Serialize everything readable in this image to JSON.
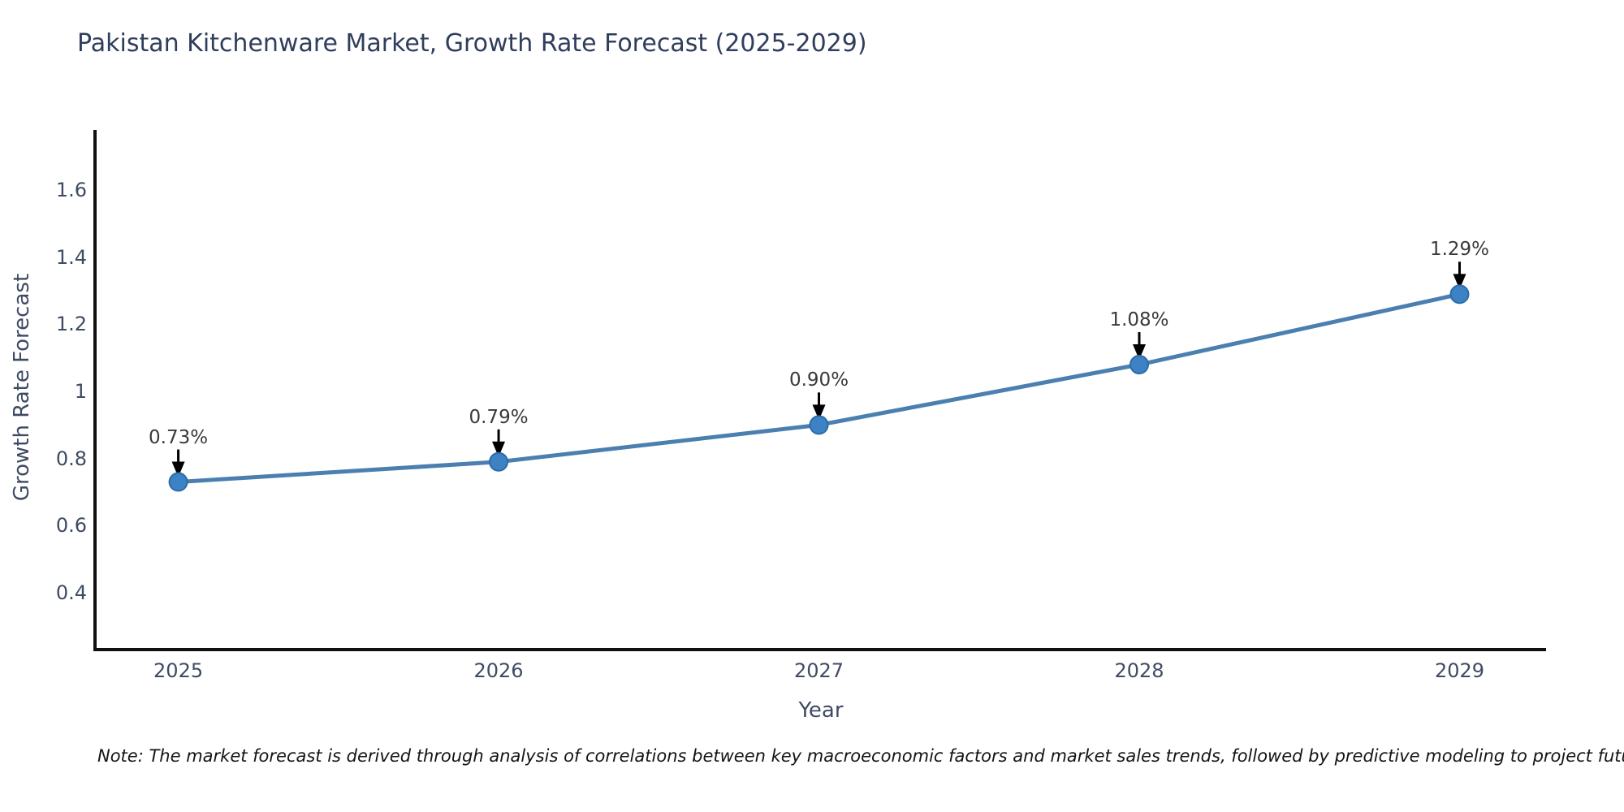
{
  "title": "Pakistan Kitchenware Market, Growth Rate Forecast (2025-2029)",
  "note": "Note: The market forecast is derived through analysis of correlations between key macroeconomic factors and market sales trends, followed by predictive modeling to project future sales",
  "chart_data": {
    "type": "line",
    "title": "Pakistan Kitchenware Market, Growth Rate Forecast (2025-2029)",
    "xlabel": "Year",
    "ylabel": "Growth Rate Forecast",
    "x": [
      2025,
      2026,
      2027,
      2028,
      2029
    ],
    "series": [
      {
        "name": "Growth Rate Forecast",
        "values": [
          0.73,
          0.79,
          0.9,
          1.08,
          1.29
        ],
        "point_labels": [
          "0.73%",
          "0.79%",
          "0.90%",
          "1.08%",
          "1.29%"
        ]
      }
    ],
    "xtick_labels": [
      "2025",
      "2026",
      "2027",
      "2028",
      "2029"
    ],
    "ytick_values": [
      0.4,
      0.6,
      0.8,
      1,
      1.2,
      1.4,
      1.6
    ],
    "ytick_labels": [
      "0.4",
      "0.6",
      "0.8",
      "1",
      "1.2",
      "1.4",
      "1.6"
    ],
    "xlim": [
      2024.74,
      2029.27
    ],
    "ylim": [
      0.23,
      1.78
    ],
    "grid": false,
    "legend_position": "none",
    "annotation_style": "value labels with downward black arrows above each marker",
    "colors": {
      "line": "#4a7fb0",
      "marker_fill": "#3c82c4",
      "marker_edge": "#2d6ca8",
      "axis_spine": "#101010",
      "arrow": "#000000",
      "title_text": "#2f3e5c",
      "tick_text": "#3f4b63",
      "annotation_text": "#3a3a3a",
      "background": "#ffffff"
    }
  }
}
